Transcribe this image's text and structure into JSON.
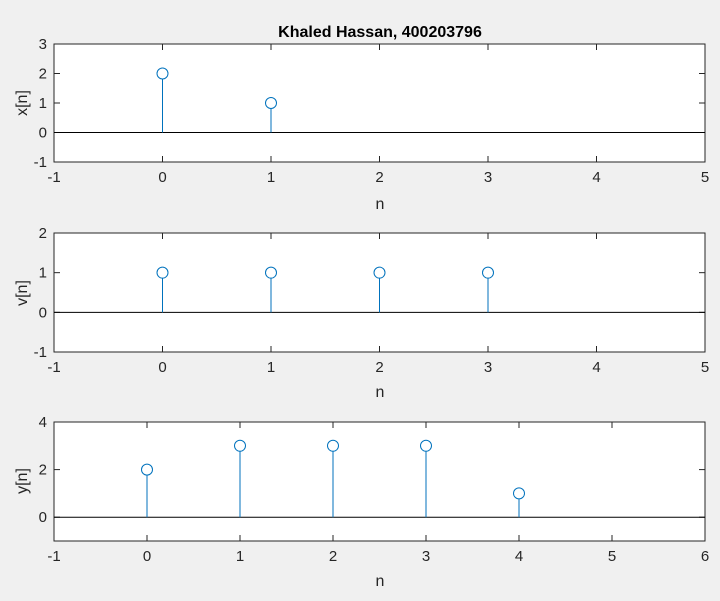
{
  "chart_data": [
    {
      "type": "stem",
      "title": "Khaled Hassan, 400203796",
      "xlabel": "n",
      "ylabel": "x[n]",
      "xlim": [
        -1,
        5
      ],
      "ylim": [
        -1,
        3
      ],
      "xticks": [
        "-1",
        "0",
        "1",
        "2",
        "3",
        "4",
        "5"
      ],
      "yticks": [
        "-1",
        "0",
        "1",
        "2",
        "3"
      ],
      "x": [
        0,
        1
      ],
      "y": [
        2,
        1
      ]
    },
    {
      "type": "stem",
      "title": "",
      "xlabel": "n",
      "ylabel": "v[n]",
      "xlim": [
        -1,
        5
      ],
      "ylim": [
        -1,
        2
      ],
      "xticks": [
        "-1",
        "0",
        "1",
        "2",
        "3",
        "4",
        "5"
      ],
      "yticks": [
        "-1",
        "0",
        "1",
        "2"
      ],
      "x": [
        0,
        1,
        2,
        3
      ],
      "y": [
        1,
        1,
        1,
        1
      ]
    },
    {
      "type": "stem",
      "title": "",
      "xlabel": "n",
      "ylabel": "y[n]",
      "xlim": [
        -1,
        6
      ],
      "ylim": [
        -1,
        4
      ],
      "xticks": [
        "-1",
        "0",
        "1",
        "2",
        "3",
        "4",
        "5",
        "6"
      ],
      "yticks": [
        "0",
        "2",
        "4"
      ],
      "x": [
        0,
        1,
        2,
        3,
        4
      ],
      "y": [
        2,
        3,
        3,
        3,
        1
      ]
    }
  ],
  "colors": {
    "stem": "#0072BD",
    "axes_bg": "#ffffff",
    "figure_bg": "#f0f0f0",
    "text": "#262626"
  }
}
